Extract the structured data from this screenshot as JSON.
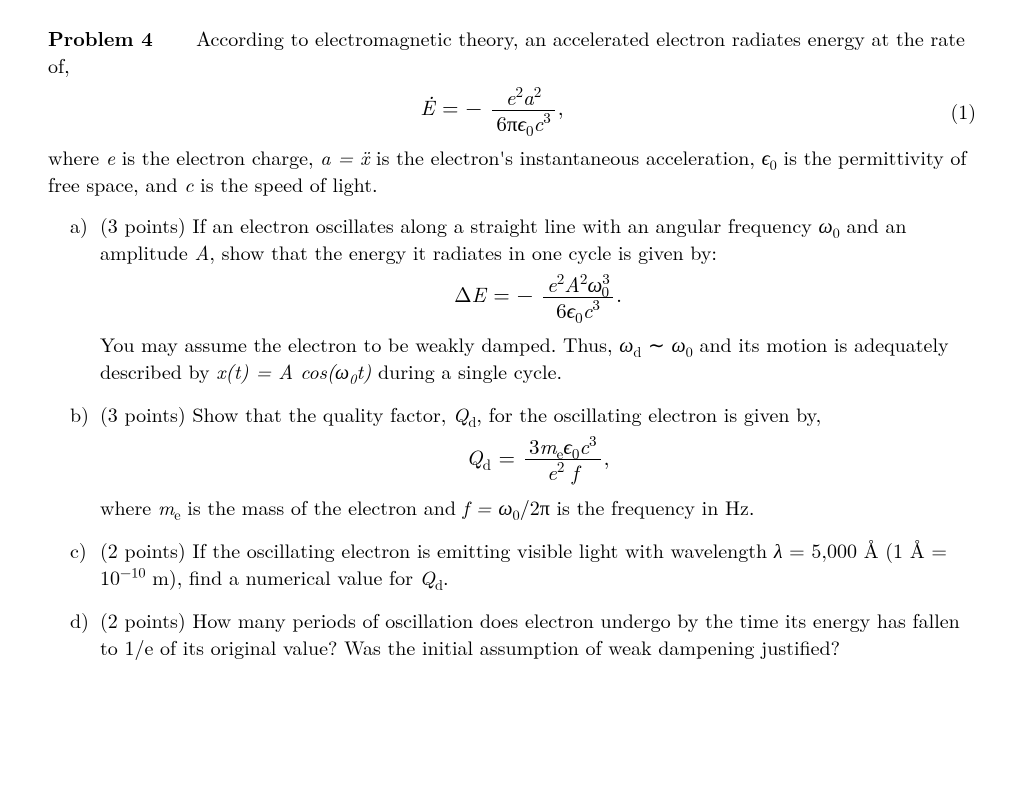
{
  "problem": {
    "label": "Problem 4",
    "intro1": "According to electromagnetic theory, an accelerated electron radiates energy at the rate of,",
    "eq1_number": "(1)",
    "intro2_pre": "where ",
    "intro2_e": "e",
    "intro2_mid1": " is the electron charge, ",
    "intro2_a_eq": "a = ẍ",
    "intro2_mid2": " is the electron's instantaneous acceleration, ",
    "intro2_eps": "ϵ",
    "intro2_eps_sub": "0",
    "intro2_mid3": " is the permittivity of free space, and ",
    "intro2_c": "c",
    "intro2_end": " is the speed of light."
  },
  "eq1": {
    "lhs_var": "Ė",
    "equals": "  =  −",
    "num_e": "e",
    "num_e_sup": "2",
    "num_a": "a",
    "num_a_sup": "2",
    "den_6pi": "6π",
    "den_eps": "ϵ",
    "den_eps_sub": "0",
    "den_c": "c",
    "den_c_sup": "3",
    "comma": ","
  },
  "parts": {
    "a": {
      "label": "a)",
      "points": "(3 points)",
      "text1": " If an electron oscillates along a straight line with an angular frequency ",
      "omega": "ω",
      "omega_sub": "0",
      "text2": " and an amplitude ",
      "amp": "A",
      "text3": ", show that the energy it radiates in one cycle is given by:",
      "eq_lhs": "ΔE",
      "eq_eqneg": "  =  − ",
      "num_e": "e",
      "num_e_sup": "2",
      "num_A": "A",
      "num_A_sup": "2",
      "num_w": "ω",
      "num_w_sup": "3",
      "num_w_sub": "0",
      "den_6": "6",
      "den_eps": "ϵ",
      "den_eps_sub": "0",
      "den_c": "c",
      "den_c_sup": "3",
      "period": ".",
      "text4_pre": "You may assume the electron to be weakly damped. Thus, ",
      "wd": "ω",
      "wd_sub": "d",
      "sim": " ∼ ",
      "w0": "ω",
      "w0_sub": "0",
      "text4_mid": " and its motion is adequately described by ",
      "xoft": "x(t)  =  A cos(ω",
      "xoft_w_sub": "0",
      "xoft_tail": "t)",
      "text4_end": " during a single cycle."
    },
    "b": {
      "label": "b)",
      "points": "(3 points)",
      "text1": " Show that the quality factor, ",
      "Qd": "Q",
      "Qd_sub": "d",
      "text2": ", for the oscillating electron is given by,",
      "eq_lhs_Q": "Q",
      "eq_lhs_Q_sub": "d",
      "eq_eq": "  =  ",
      "num_3m": "3m",
      "num_m_sub": "e",
      "num_eps": "ϵ",
      "num_eps_sub": "0",
      "num_c": "c",
      "num_c_sup": "3",
      "den_e": "e",
      "den_e_sup": "2",
      "den_f": " f",
      "comma": ",",
      "text3_pre": "where ",
      "me": "m",
      "me_sub": "e",
      "text3_mid1": " is the mass of the electron and ",
      "f": "f",
      "text3_eq": " = ω",
      "text3_w_sub": "0",
      "text3_over2pi": "/2π",
      "text3_end": " is the frequency in Hz."
    },
    "c": {
      "label": "c)",
      "points": "(2 points)",
      "text1": " If the oscillating electron is emitting visible light with wavelength ",
      "lambda": "λ",
      "lambda_val": " = 5,000 ",
      "angstrom": "Å",
      "paren_open": " (1 ",
      "ang2": "Å",
      "ang_eq": " = 10",
      "ang_exp": "−10",
      "ang_m": " m)",
      "text2": ", find a numerical value for ",
      "Qd2": "Q",
      "Qd2_sub": "d",
      "period": "."
    },
    "d": {
      "label": "d)",
      "points": "(2 points)",
      "text1": " How many periods of oscillation does electron undergo by the time its energy has fallen to ",
      "one_over_e": "1/e",
      "text2": " of its original value? Was the initial assumption of weak dampening justified?"
    }
  }
}
